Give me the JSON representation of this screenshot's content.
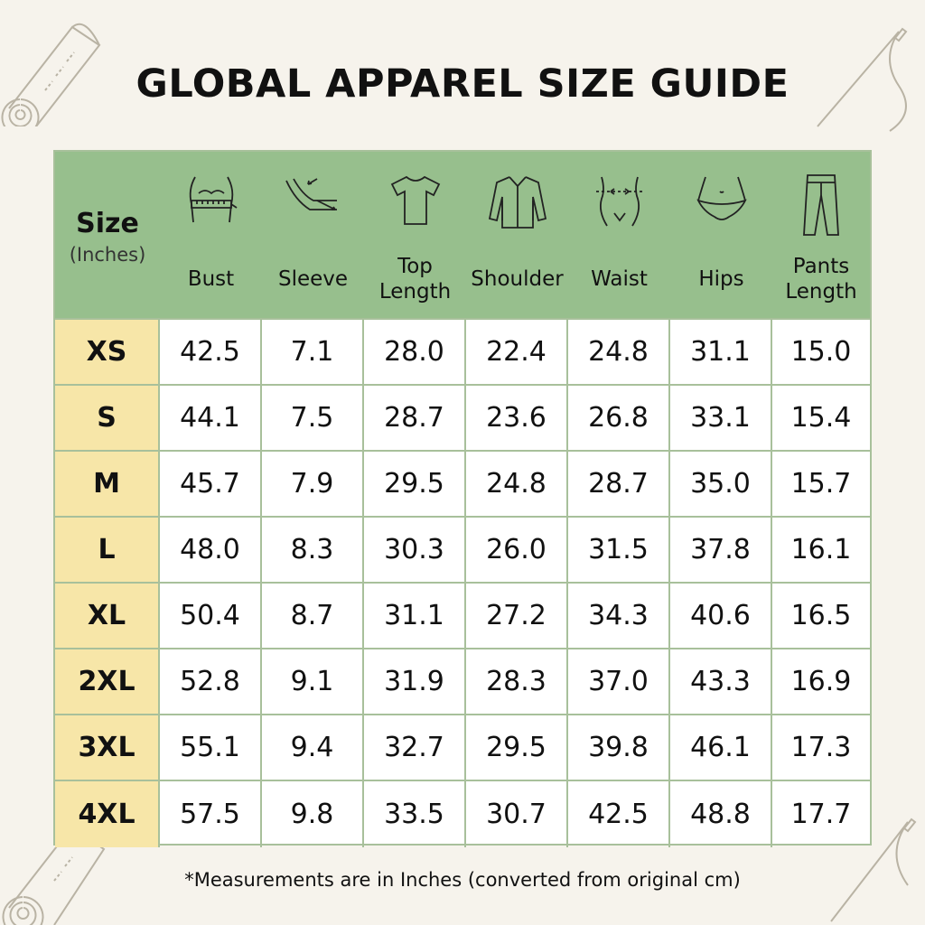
{
  "title": "GLOBAL APPAREL SIZE GUIDE",
  "header": {
    "size_label": "Size",
    "unit_label": "(Inches)",
    "columns": [
      {
        "lines": [
          "Bust"
        ],
        "icon": "bust-icon"
      },
      {
        "lines": [
          "Sleeve"
        ],
        "icon": "sleeve-icon"
      },
      {
        "lines": [
          "Top",
          "Length"
        ],
        "icon": "tshirt-icon"
      },
      {
        "lines": [
          "Shoulder"
        ],
        "icon": "shirt-icon"
      },
      {
        "lines": [
          "Waist"
        ],
        "icon": "waist-icon"
      },
      {
        "lines": [
          "Hips"
        ],
        "icon": "hips-icon"
      },
      {
        "lines": [
          "Pants",
          "Length"
        ],
        "icon": "pants-icon"
      }
    ]
  },
  "rows": [
    {
      "size": "XS",
      "values": [
        "42.5",
        "7.1",
        "28.0",
        "22.4",
        "24.8",
        "31.1",
        "15.0"
      ]
    },
    {
      "size": "S",
      "values": [
        "44.1",
        "7.5",
        "28.7",
        "23.6",
        "26.8",
        "33.1",
        "15.4"
      ]
    },
    {
      "size": "M",
      "values": [
        "45.7",
        "7.9",
        "29.5",
        "24.8",
        "28.7",
        "35.0",
        "15.7"
      ]
    },
    {
      "size": "L",
      "values": [
        "48.0",
        "8.3",
        "30.3",
        "26.0",
        "31.5",
        "37.8",
        "16.1"
      ]
    },
    {
      "size": "XL",
      "values": [
        "50.4",
        "8.7",
        "31.1",
        "27.2",
        "34.3",
        "40.6",
        "16.5"
      ]
    },
    {
      "size": "2XL",
      "values": [
        "52.8",
        "9.1",
        "31.9",
        "28.3",
        "37.0",
        "43.3",
        "16.9"
      ]
    },
    {
      "size": "3XL",
      "values": [
        "55.1",
        "9.4",
        "32.7",
        "29.5",
        "39.8",
        "46.1",
        "17.3"
      ]
    },
    {
      "size": "4XL",
      "values": [
        "57.5",
        "9.8",
        "33.5",
        "30.7",
        "42.5",
        "48.8",
        "17.7"
      ]
    }
  ],
  "footnote": "*Measurements are in Inches (converted from original cm)",
  "colors": {
    "background": "#f6f3ec",
    "header": "#97bf8d",
    "size_column": "#f7e6a8",
    "grid": "#a8c09b"
  }
}
